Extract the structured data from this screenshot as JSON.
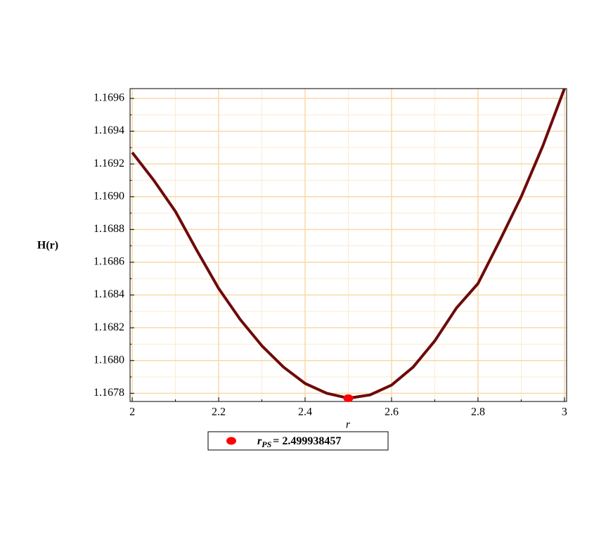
{
  "chart_data": {
    "type": "line",
    "xlabel": "r",
    "ylabel": "H(r)",
    "x": [
      2.0,
      2.05,
      2.1,
      2.15,
      2.2,
      2.25,
      2.3,
      2.35,
      2.4,
      2.45,
      2.5,
      2.55,
      2.6,
      2.65,
      2.7,
      2.75,
      2.8,
      2.85,
      2.9,
      2.95,
      3.0
    ],
    "series": [
      {
        "color": "#6e0a0a",
        "values": [
          1.16927,
          1.1691,
          1.16891,
          1.16867,
          1.16844,
          1.16825,
          1.16809,
          1.16796,
          1.16786,
          1.1678,
          1.16777,
          1.16779,
          1.16785,
          1.16796,
          1.16812,
          1.16832,
          1.16847,
          1.16873,
          1.169,
          1.16931,
          1.16966
        ]
      },
      {
        "type": "scatter",
        "name": "r",
        "name_subscript": "PS",
        "color": "#ff0000",
        "x": [
          2.499938457
        ],
        "values": [
          1.16777
        ],
        "x_labels": [
          "= 2.499938457"
        ]
      }
    ],
    "xlim": [
      1.995,
      3.005
    ],
    "ylim": [
      1.16775,
      1.16966
    ],
    "xticks": [
      2,
      2.2,
      2.4,
      2.6,
      2.8,
      3
    ],
    "xminorticks": [
      2.1,
      2.3,
      2.5,
      2.7,
      2.9
    ],
    "yticks": [
      {
        "value": 1.1678,
        "label": "1.1678"
      },
      1.1682,
      1.1684,
      1.1686,
      1.1688,
      {
        "value": 1.169,
        "label": "1.1690"
      },
      1.1692,
      1.1694,
      1.1696,
      {
        "value": 1.168,
        "label": "1.1680"
      }
    ],
    "yminorticks": [
      1.1679,
      1.1681,
      1.1683,
      1.1685,
      1.1687,
      1.1689,
      1.1691,
      1.1693,
      1.1695
    ],
    "grid": true
  }
}
